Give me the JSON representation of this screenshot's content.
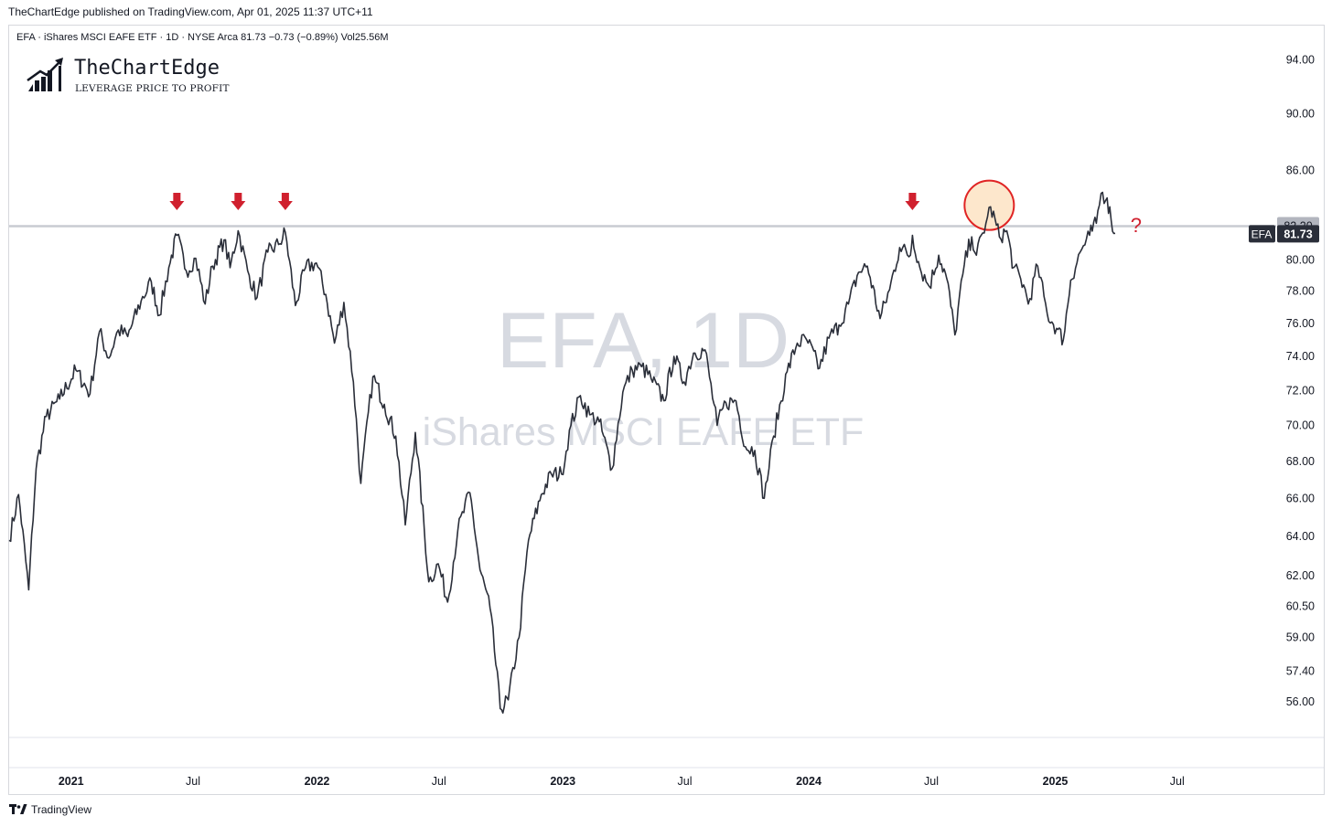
{
  "header": {
    "publisher_line": "TheChartEdge published on TradingView.com, Apr 01, 2025 11:37 UTC+11"
  },
  "symbol_info": {
    "line": "EFA · iShares MSCI EAFE ETF · 1D · NYSE Arca  81.73  −0.73  (−0.89%)  Vol25.56M"
  },
  "logo": {
    "name": "TheChartEdge",
    "tagline": "LEVERAGE PRICE TO PROFIT"
  },
  "watermark": {
    "symbol_interval": "EFA, 1D",
    "description": "iShares MSCI EAFE ETF"
  },
  "footer": {
    "brand": "TradingView"
  },
  "annotations": {
    "question_mark": "?",
    "resistance_level": 82.2,
    "resistance_label": "82.20",
    "arrow_color": "#d0202e",
    "highlight_fill": "#fde7cc",
    "highlight_stroke": "#e02424"
  },
  "chart_data": {
    "type": "line",
    "symbol": "EFA",
    "title": "EFA · iShares MSCI EAFE ETF · 1D · NYSE Arca",
    "last_price": 81.73,
    "last_price_label": "81.73",
    "line_color": "#2a2e39",
    "scale": "log",
    "ylim": [
      54.5,
      96.5
    ],
    "y_ticks": [
      "94.00",
      "90.00",
      "86.00",
      "82.20",
      "80.00",
      "78.00",
      "76.00",
      "74.00",
      "72.00",
      "70.00",
      "68.00",
      "66.00",
      "64.00",
      "62.00",
      "60.50",
      "59.00",
      "57.40",
      "56.00"
    ],
    "x_ticks": [
      {
        "label": "2021",
        "date": "2021-01-01",
        "bold": true
      },
      {
        "label": "Jul",
        "date": "2021-07-01",
        "bold": false
      },
      {
        "label": "2022",
        "date": "2022-01-01",
        "bold": true
      },
      {
        "label": "Jul",
        "date": "2022-07-01",
        "bold": false
      },
      {
        "label": "2023",
        "date": "2023-01-01",
        "bold": true
      },
      {
        "label": "Jul",
        "date": "2023-07-01",
        "bold": false
      },
      {
        "label": "2024",
        "date": "2024-01-01",
        "bold": true
      },
      {
        "label": "Jul",
        "date": "2024-07-01",
        "bold": false
      },
      {
        "label": "2025",
        "date": "2025-01-01",
        "bold": true
      },
      {
        "label": "Jul",
        "date": "2025-07-01",
        "bold": false
      }
    ],
    "xlim": [
      "2020-10-01",
      "2025-11-25"
    ],
    "arrow_dates": [
      "2021-06-07",
      "2021-09-06",
      "2021-11-15",
      "2024-06-03"
    ],
    "circle_date": "2024-09-25",
    "circle_price": 83.6,
    "question_date": "2025-05-01",
    "question_price": 82.3,
    "series": [
      {
        "points": [
          [
            "2020-10-01",
            63.8
          ],
          [
            "2020-10-15",
            66.2
          ],
          [
            "2020-10-30",
            61.3
          ],
          [
            "2020-11-10",
            67.6
          ],
          [
            "2020-11-25",
            70.5
          ],
          [
            "2020-12-15",
            71.5
          ],
          [
            "2021-01-08",
            73.2
          ],
          [
            "2021-01-29",
            71.8
          ],
          [
            "2021-02-12",
            75.5
          ],
          [
            "2021-02-26",
            73.9
          ],
          [
            "2021-03-12",
            75.6
          ],
          [
            "2021-03-26",
            75.2
          ],
          [
            "2021-04-15",
            77.4
          ],
          [
            "2021-04-30",
            78.6
          ],
          [
            "2021-05-12",
            76.5
          ],
          [
            "2021-05-26",
            79.5
          ],
          [
            "2021-06-07",
            81.6
          ],
          [
            "2021-06-21",
            79.3
          ],
          [
            "2021-07-05",
            80.1
          ],
          [
            "2021-07-19",
            77.2
          ],
          [
            "2021-07-30",
            79.6
          ],
          [
            "2021-08-16",
            81.3
          ],
          [
            "2021-08-25",
            79.5
          ],
          [
            "2021-09-06",
            81.9
          ],
          [
            "2021-09-20",
            79.3
          ],
          [
            "2021-10-04",
            77.6
          ],
          [
            "2021-10-20",
            80.5
          ],
          [
            "2021-11-05",
            81.0
          ],
          [
            "2021-11-15",
            81.8
          ],
          [
            "2021-11-30",
            77.1
          ],
          [
            "2021-12-15",
            79.5
          ],
          [
            "2021-12-31",
            79.8
          ],
          [
            "2022-01-14",
            77.8
          ],
          [
            "2022-01-27",
            74.8
          ],
          [
            "2022-02-10",
            77.3
          ],
          [
            "2022-02-24",
            72.5
          ],
          [
            "2022-03-07",
            66.8
          ],
          [
            "2022-03-25",
            72.8
          ],
          [
            "2022-04-11",
            71.2
          ],
          [
            "2022-04-28",
            69.4
          ],
          [
            "2022-05-12",
            64.6
          ],
          [
            "2022-05-27",
            69.6
          ],
          [
            "2022-06-16",
            61.7
          ],
          [
            "2022-06-30",
            62.6
          ],
          [
            "2022-07-14",
            60.7
          ],
          [
            "2022-07-29",
            64.3
          ],
          [
            "2022-08-16",
            66.3
          ],
          [
            "2022-08-31",
            62.3
          ],
          [
            "2022-09-15",
            60.4
          ],
          [
            "2022-09-30",
            55.7
          ],
          [
            "2022-10-12",
            56.1
          ],
          [
            "2022-10-28",
            59.0
          ],
          [
            "2022-11-11",
            63.8
          ],
          [
            "2022-11-30",
            66.2
          ],
          [
            "2022-12-15",
            67.3
          ],
          [
            "2022-12-30",
            67.3
          ],
          [
            "2023-01-13",
            70.0
          ],
          [
            "2023-01-27",
            71.7
          ],
          [
            "2023-02-10",
            70.6
          ],
          [
            "2023-02-24",
            70.2
          ],
          [
            "2023-03-15",
            67.6
          ],
          [
            "2023-03-31",
            71.9
          ],
          [
            "2023-04-14",
            73.2
          ],
          [
            "2023-04-28",
            73.4
          ],
          [
            "2023-05-12",
            72.7
          ],
          [
            "2023-05-31",
            71.4
          ],
          [
            "2023-06-15",
            74.0
          ],
          [
            "2023-06-30",
            72.5
          ],
          [
            "2023-07-14",
            74.2
          ],
          [
            "2023-07-31",
            74.4
          ],
          [
            "2023-08-18",
            70.0
          ],
          [
            "2023-08-31",
            71.3
          ],
          [
            "2023-09-15",
            71.4
          ],
          [
            "2023-09-29",
            68.8
          ],
          [
            "2023-10-13",
            68.6
          ],
          [
            "2023-10-27",
            66.0
          ],
          [
            "2023-11-10",
            69.4
          ],
          [
            "2023-11-30",
            73.1
          ],
          [
            "2023-12-15",
            74.8
          ],
          [
            "2023-12-29",
            75.0
          ],
          [
            "2024-01-17",
            73.3
          ],
          [
            "2024-01-31",
            75.1
          ],
          [
            "2024-02-15",
            75.9
          ],
          [
            "2024-02-29",
            77.2
          ],
          [
            "2024-03-15",
            79.2
          ],
          [
            "2024-03-28",
            79.6
          ],
          [
            "2024-04-16",
            76.3
          ],
          [
            "2024-04-30",
            78.1
          ],
          [
            "2024-05-15",
            80.8
          ],
          [
            "2024-05-31",
            80.3
          ],
          [
            "2024-06-03",
            81.6
          ],
          [
            "2024-06-14",
            79.5
          ],
          [
            "2024-06-28",
            78.3
          ],
          [
            "2024-07-12",
            80.3
          ],
          [
            "2024-07-24",
            78.8
          ],
          [
            "2024-08-05",
            75.3
          ],
          [
            "2024-08-19",
            79.7
          ],
          [
            "2024-08-30",
            81.5
          ],
          [
            "2024-09-06",
            80.3
          ],
          [
            "2024-09-20",
            82.4
          ],
          [
            "2024-09-27",
            83.5
          ],
          [
            "2024-10-10",
            81.5
          ],
          [
            "2024-10-21",
            81.9
          ],
          [
            "2024-10-31",
            79.5
          ],
          [
            "2024-11-15",
            78.4
          ],
          [
            "2024-11-22",
            77.2
          ],
          [
            "2024-12-06",
            79.6
          ],
          [
            "2024-12-20",
            76.6
          ],
          [
            "2025-01-03",
            75.7
          ],
          [
            "2025-01-13",
            75.0
          ],
          [
            "2025-01-24",
            78.7
          ],
          [
            "2025-02-07",
            80.5
          ],
          [
            "2025-02-21",
            81.6
          ],
          [
            "2025-03-03",
            82.4
          ],
          [
            "2025-03-10",
            84.4
          ],
          [
            "2025-03-19",
            84.1
          ],
          [
            "2025-03-25",
            82.6
          ],
          [
            "2025-03-31",
            81.73
          ]
        ]
      }
    ],
    "xlabel": "",
    "ylabel": "",
    "grid": false,
    "legend": "none"
  }
}
